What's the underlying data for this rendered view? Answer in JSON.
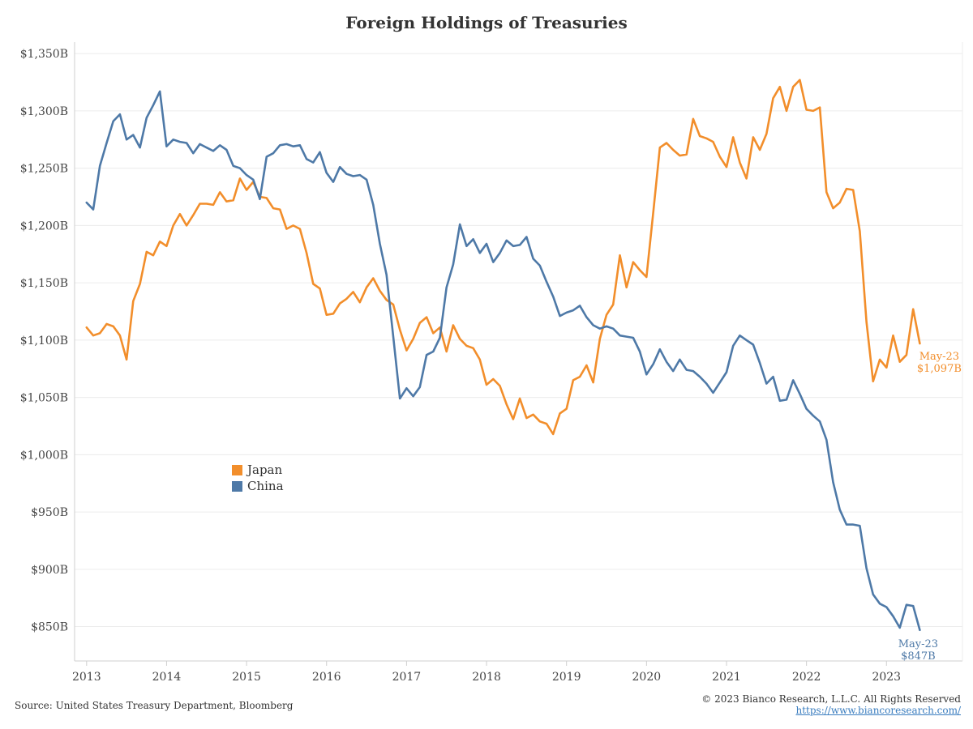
{
  "colors": {
    "japan": "#f28e2b",
    "china": "#4e79a7",
    "grid": "#ececec",
    "axis": "#cfcfcf"
  },
  "footer": {
    "source": "Source: United States Treasury Department, Bloomberg",
    "copyright": "© 2023 Bianco Research, L.L.C. All Rights Reserved",
    "website": "https://www.biancoresearch.com/"
  },
  "chart_data": {
    "type": "line",
    "title": "Foreign Holdings of Treasuries",
    "xlabel": "",
    "ylabel": "",
    "ylim": [
      820,
      1360
    ],
    "xlim": [
      2012.85,
      2023.95
    ],
    "y_ticks": [
      850,
      900,
      950,
      1000,
      1050,
      1100,
      1150,
      1200,
      1250,
      1300,
      1350
    ],
    "y_tick_labels": [
      "$850B",
      "$900B",
      "$950B",
      "$1,000B",
      "$1,050B",
      "$1,100B",
      "$1,150B",
      "$1,200B",
      "$1,250B",
      "$1,300B",
      "$1,350B"
    ],
    "x_ticks": [
      2013,
      2014,
      2015,
      2016,
      2017,
      2018,
      2019,
      2020,
      2021,
      2022,
      2023
    ],
    "x_tick_labels": [
      "2013",
      "2014",
      "2015",
      "2016",
      "2017",
      "2018",
      "2019",
      "2020",
      "2021",
      "2022",
      "2023"
    ],
    "x_start": 2013,
    "x_step_months": 1,
    "legend": [
      "Japan",
      "China"
    ],
    "legend_position": "center-left",
    "series": [
      {
        "name": "Japan",
        "end_label": [
          "May-23",
          "$1,097B"
        ],
        "values": [
          1111,
          1104,
          1106,
          1114,
          1112,
          1104,
          1083,
          1134,
          1149,
          1177,
          1174,
          1186,
          1182,
          1200,
          1210,
          1200,
          1209,
          1219,
          1219,
          1218,
          1229,
          1221,
          1222,
          1241,
          1231,
          1238,
          1225,
          1224,
          1215,
          1214,
          1197,
          1200,
          1197,
          1176,
          1149,
          1145,
          1122,
          1123,
          1132,
          1136,
          1142,
          1133,
          1146,
          1154,
          1143,
          1135,
          1131,
          1109,
          1091,
          1101,
          1115,
          1120,
          1106,
          1111,
          1090,
          1113,
          1101,
          1095,
          1093,
          1083,
          1061,
          1066,
          1060,
          1044,
          1031,
          1049,
          1032,
          1035,
          1029,
          1027,
          1018,
          1036,
          1040,
          1065,
          1068,
          1078,
          1063,
          1101,
          1122,
          1131,
          1174,
          1146,
          1168,
          1161,
          1155,
          1211,
          1268,
          1272,
          1266,
          1261,
          1262,
          1293,
          1278,
          1276,
          1273,
          1260,
          1251,
          1277,
          1255,
          1241,
          1277,
          1266,
          1280,
          1311,
          1321,
          1300,
          1321,
          1327,
          1301,
          1300,
          1303,
          1229,
          1215,
          1220,
          1232,
          1231,
          1195,
          1116,
          1064,
          1083,
          1076,
          1104,
          1081,
          1087,
          1127,
          1097
        ]
      },
      {
        "name": "China",
        "end_label": [
          "May-23",
          "$847B"
        ],
        "values": [
          1220,
          1214,
          1252,
          1272,
          1291,
          1297,
          1275,
          1279,
          1268,
          1294,
          1305,
          1317,
          1269,
          1275,
          1273,
          1272,
          1263,
          1271,
          1268,
          1265,
          1270,
          1266,
          1252,
          1250,
          1244,
          1240,
          1223,
          1260,
          1263,
          1270,
          1271,
          1269,
          1270,
          1258,
          1255,
          1264,
          1246,
          1238,
          1251,
          1245,
          1243,
          1244,
          1240,
          1218,
          1184,
          1157,
          1103,
          1049,
          1058,
          1051,
          1059,
          1087,
          1090,
          1102,
          1146,
          1166,
          1201,
          1182,
          1188,
          1176,
          1184,
          1168,
          1176,
          1187,
          1182,
          1183,
          1190,
          1171,
          1165,
          1151,
          1138,
          1121,
          1124,
          1126,
          1130,
          1120,
          1113,
          1110,
          1112,
          1110,
          1104,
          1103,
          1102,
          1090,
          1070,
          1079,
          1092,
          1081,
          1073,
          1083,
          1074,
          1073,
          1068,
          1062,
          1054,
          1063,
          1072,
          1095,
          1104,
          1100,
          1096,
          1080,
          1062,
          1068,
          1047,
          1048,
          1065,
          1053,
          1040,
          1034,
          1029,
          1013,
          976,
          952,
          939,
          939,
          938,
          901,
          878,
          870,
          867,
          859,
          849,
          869,
          868,
          847
        ]
      }
    ]
  }
}
